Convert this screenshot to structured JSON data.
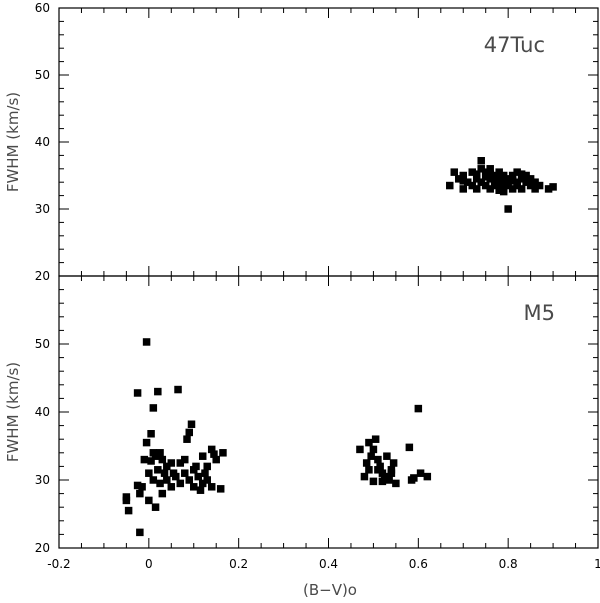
{
  "chart_data": [
    {
      "type": "scatter",
      "panel_label": "47Tuc",
      "ylabel": "FWHM (km/s)",
      "xlim": [
        -0.2,
        1.0
      ],
      "ylim": [
        20,
        60
      ],
      "yticks": [
        "20",
        "30",
        "40",
        "50",
        "60"
      ],
      "points": [
        [
          0.67,
          33.5
        ],
        [
          0.68,
          35.5
        ],
        [
          0.69,
          34.5
        ],
        [
          0.7,
          33.0
        ],
        [
          0.7,
          35.0
        ],
        [
          0.71,
          34.0
        ],
        [
          0.72,
          33.5
        ],
        [
          0.72,
          35.5
        ],
        [
          0.73,
          34.5
        ],
        [
          0.73,
          33.0
        ],
        [
          0.74,
          36.0
        ],
        [
          0.74,
          34.0
        ],
        [
          0.74,
          37.2
        ],
        [
          0.75,
          35.5
        ],
        [
          0.75,
          33.5
        ],
        [
          0.76,
          34.5
        ],
        [
          0.76,
          33.0
        ],
        [
          0.76,
          36.0
        ],
        [
          0.77,
          34.0
        ],
        [
          0.77,
          35.0
        ],
        [
          0.77,
          33.5
        ],
        [
          0.78,
          34.5
        ],
        [
          0.78,
          32.8
        ],
        [
          0.78,
          35.5
        ],
        [
          0.79,
          34.0
        ],
        [
          0.79,
          33.0
        ],
        [
          0.79,
          35.0
        ],
        [
          0.8,
          34.5
        ],
        [
          0.8,
          33.5
        ],
        [
          0.8,
          30.0
        ],
        [
          0.81,
          35.0
        ],
        [
          0.81,
          33.0
        ],
        [
          0.82,
          34.0
        ],
        [
          0.82,
          35.5
        ],
        [
          0.82,
          33.5
        ],
        [
          0.83,
          34.5
        ],
        [
          0.83,
          33.0
        ],
        [
          0.84,
          34.0
        ],
        [
          0.84,
          35.0
        ],
        [
          0.85,
          33.5
        ],
        [
          0.85,
          34.5
        ],
        [
          0.86,
          33.0
        ],
        [
          0.86,
          34.0
        ],
        [
          0.7,
          34.2
        ],
        [
          0.75,
          34.8
        ],
        [
          0.78,
          33.8
        ],
        [
          0.81,
          34.2
        ],
        [
          0.89,
          33.0
        ],
        [
          0.9,
          33.3
        ],
        [
          0.73,
          35.2
        ],
        [
          0.76,
          35.2
        ],
        [
          0.79,
          32.6
        ],
        [
          0.83,
          35.2
        ],
        [
          0.87,
          33.5
        ]
      ]
    },
    {
      "type": "scatter",
      "panel_label": "M5",
      "xlabel": "(B−V)o",
      "ylabel": "FWHM (km/s)",
      "xlim": [
        -0.2,
        1.0
      ],
      "ylim": [
        20,
        60
      ],
      "xticks": [
        "-0.2",
        "0",
        "0.2",
        "0.4",
        "0.6",
        "0.8",
        "1"
      ],
      "yticks": [
        "20",
        "30",
        "40",
        "50"
      ],
      "points": [
        [
          -0.05,
          27.5
        ],
        [
          -0.05,
          27.0
        ],
        [
          -0.045,
          25.5
        ],
        [
          -0.025,
          42.8
        ],
        [
          -0.02,
          22.3
        ],
        [
          -0.025,
          29.2
        ],
        [
          -0.02,
          28.0
        ],
        [
          -0.015,
          29.0
        ],
        [
          -0.01,
          33.0
        ],
        [
          -0.005,
          35.5
        ],
        [
          -0.005,
          50.3
        ],
        [
          0.0,
          31.0
        ],
        [
          0.0,
          27.0
        ],
        [
          0.005,
          32.8
        ],
        [
          0.005,
          36.8
        ],
        [
          0.01,
          40.6
        ],
        [
          0.01,
          30.0
        ],
        [
          0.01,
          34.0
        ],
        [
          0.015,
          26.0
        ],
        [
          0.015,
          33.5
        ],
        [
          0.02,
          43.0
        ],
        [
          0.02,
          31.5
        ],
        [
          0.025,
          34.0
        ],
        [
          0.025,
          29.5
        ],
        [
          0.03,
          33.0
        ],
        [
          0.03,
          28.0
        ],
        [
          0.035,
          31.0
        ],
        [
          0.04,
          30.0
        ],
        [
          0.04,
          32.0
        ],
        [
          0.05,
          32.5
        ],
        [
          0.05,
          29.0
        ],
        [
          0.055,
          31.0
        ],
        [
          0.06,
          30.5
        ],
        [
          0.065,
          43.3
        ],
        [
          0.07,
          32.5
        ],
        [
          0.07,
          29.5
        ],
        [
          0.08,
          33.0
        ],
        [
          0.08,
          31.0
        ],
        [
          0.085,
          36.0
        ],
        [
          0.09,
          30.0
        ],
        [
          0.09,
          37.0
        ],
        [
          0.095,
          38.2
        ],
        [
          0.1,
          31.5
        ],
        [
          0.1,
          29.0
        ],
        [
          0.105,
          32.0
        ],
        [
          0.11,
          30.5
        ],
        [
          0.115,
          28.5
        ],
        [
          0.12,
          33.5
        ],
        [
          0.12,
          29.5
        ],
        [
          0.125,
          31.0
        ],
        [
          0.13,
          30.0
        ],
        [
          0.13,
          32.0
        ],
        [
          0.14,
          34.5
        ],
        [
          0.14,
          29.0
        ],
        [
          0.145,
          33.8
        ],
        [
          0.15,
          33.0
        ],
        [
          0.16,
          28.7
        ],
        [
          0.165,
          34.0
        ],
        [
          0.47,
          34.5
        ],
        [
          0.48,
          30.5
        ],
        [
          0.485,
          32.5
        ],
        [
          0.49,
          35.5
        ],
        [
          0.49,
          31.5
        ],
        [
          0.495,
          33.5
        ],
        [
          0.5,
          29.8
        ],
        [
          0.5,
          34.5
        ],
        [
          0.505,
          36.0
        ],
        [
          0.51,
          33.0
        ],
        [
          0.515,
          32.0
        ],
        [
          0.52,
          31.0
        ],
        [
          0.525,
          30.5
        ],
        [
          0.53,
          33.5
        ],
        [
          0.535,
          30.0
        ],
        [
          0.54,
          31.5
        ],
        [
          0.545,
          32.5
        ],
        [
          0.55,
          29.5
        ],
        [
          0.58,
          34.8
        ],
        [
          0.585,
          30.0
        ],
        [
          0.59,
          30.3
        ],
        [
          0.6,
          40.5
        ],
        [
          0.605,
          31.0
        ],
        [
          0.62,
          30.5
        ],
        [
          0.52,
          29.8
        ],
        [
          0.54,
          31.0
        ],
        [
          0.51,
          31.5
        ]
      ]
    }
  ]
}
